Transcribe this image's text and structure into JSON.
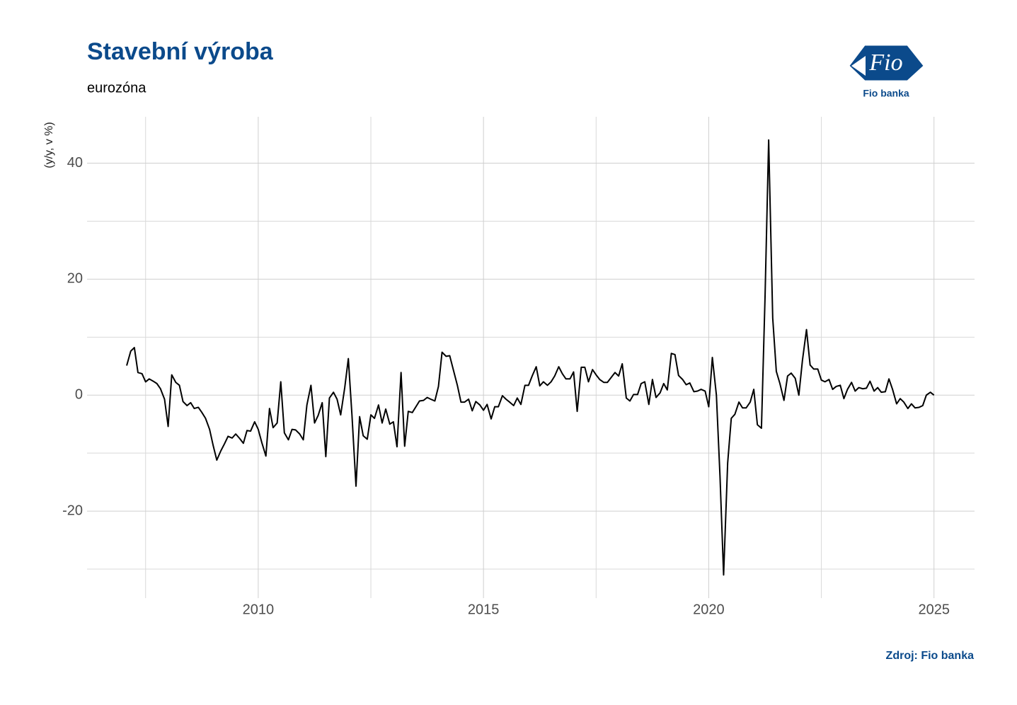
{
  "chart_data": {
    "type": "line",
    "title": "Stavební výroba",
    "subtitle": "eurozóna",
    "y_label": "(y/y, v %)",
    "source": "Zdroj: Fio banka",
    "logo": {
      "mark": "Fio",
      "caption": "Fio banka"
    },
    "xlim": [
      2006.2,
      2025.9
    ],
    "xticks": [
      2010,
      2015,
      2020,
      2025
    ],
    "xminorticks": [
      2007.5,
      2012.5,
      2017.5,
      2022.5
    ],
    "ylim": [
      -35,
      48
    ],
    "yticks": [
      -20,
      0,
      20,
      40
    ],
    "yminorticks": [
      -30,
      -10,
      10,
      30
    ],
    "grid": true,
    "x": [
      2007.08,
      2007.17,
      2007.25,
      2007.33,
      2007.42,
      2007.5,
      2007.58,
      2007.67,
      2007.75,
      2007.83,
      2007.92,
      2008,
      2008.08,
      2008.17,
      2008.25,
      2008.33,
      2008.42,
      2008.5,
      2008.58,
      2008.67,
      2008.75,
      2008.83,
      2008.92,
      2009,
      2009.08,
      2009.17,
      2009.25,
      2009.33,
      2009.42,
      2009.5,
      2009.58,
      2009.67,
      2009.75,
      2009.83,
      2009.92,
      2010,
      2010.08,
      2010.17,
      2010.25,
      2010.33,
      2010.42,
      2010.5,
      2010.58,
      2010.67,
      2010.75,
      2010.83,
      2010.92,
      2011,
      2011.08,
      2011.17,
      2011.25,
      2011.33,
      2011.42,
      2011.5,
      2011.58,
      2011.67,
      2011.75,
      2011.83,
      2011.92,
      2012,
      2012.08,
      2012.17,
      2012.25,
      2012.33,
      2012.42,
      2012.5,
      2012.58,
      2012.67,
      2012.75,
      2012.83,
      2012.92,
      2013,
      2013.08,
      2013.17,
      2013.25,
      2013.33,
      2013.42,
      2013.5,
      2013.58,
      2013.67,
      2013.75,
      2013.83,
      2013.92,
      2014,
      2014.08,
      2014.17,
      2014.25,
      2014.33,
      2014.42,
      2014.5,
      2014.58,
      2014.67,
      2014.75,
      2014.83,
      2014.92,
      2015,
      2015.08,
      2015.17,
      2015.25,
      2015.33,
      2015.42,
      2015.5,
      2015.58,
      2015.67,
      2015.75,
      2015.83,
      2015.92,
      2016,
      2016.08,
      2016.17,
      2016.25,
      2016.33,
      2016.42,
      2016.5,
      2016.58,
      2016.67,
      2016.75,
      2016.83,
      2016.92,
      2017,
      2017.08,
      2017.17,
      2017.25,
      2017.33,
      2017.42,
      2017.5,
      2017.58,
      2017.67,
      2017.75,
      2017.83,
      2017.92,
      2018,
      2018.08,
      2018.17,
      2018.25,
      2018.33,
      2018.42,
      2018.5,
      2018.58,
      2018.67,
      2018.75,
      2018.83,
      2018.92,
      2019,
      2019.08,
      2019.17,
      2019.25,
      2019.33,
      2019.42,
      2019.5,
      2019.58,
      2019.67,
      2019.75,
      2019.83,
      2019.92,
      2020,
      2020.08,
      2020.17,
      2020.25,
      2020.33,
      2020.42,
      2020.5,
      2020.58,
      2020.67,
      2020.75,
      2020.83,
      2020.92,
      2021,
      2021.08,
      2021.17,
      2021.25,
      2021.33,
      2021.42,
      2021.5,
      2021.58,
      2021.67,
      2021.75,
      2021.83,
      2021.92,
      2022,
      2022.08,
      2022.17,
      2022.25,
      2022.33,
      2022.42,
      2022.5,
      2022.58,
      2022.67,
      2022.75,
      2022.83,
      2022.92,
      2023,
      2023.08,
      2023.17,
      2023.25,
      2023.33,
      2023.42,
      2023.5,
      2023.58,
      2023.67,
      2023.75,
      2023.83,
      2023.92,
      2024,
      2024.08,
      2024.17,
      2024.25,
      2024.33,
      2024.42,
      2024.5,
      2024.58,
      2024.67,
      2024.75,
      2024.83,
      2024.92,
      2025
    ],
    "series": [
      {
        "color": "#000000",
        "values": [
          5.1,
          7.6,
          8.2,
          3.9,
          3.7,
          2.3,
          2.8,
          2.4,
          2.0,
          1.1,
          -0.7,
          -5.4,
          3.5,
          2.2,
          1.7,
          -1.1,
          -1.8,
          -1.3,
          -2.3,
          -2.1,
          -3.0,
          -4.0,
          -5.9,
          -8.7,
          -11.2,
          -9.6,
          -8.4,
          -7.1,
          -7.4,
          -6.7,
          -7.4,
          -8.3,
          -6.1,
          -6.2,
          -4.6,
          -5.9,
          -8.2,
          -10.5,
          -2.3,
          -5.6,
          -4.8,
          2.3,
          -6.5,
          -7.7,
          -5.9,
          -6.0,
          -6.7,
          -7.7,
          -1.7,
          1.7,
          -4.8,
          -3.5,
          -1.3,
          -10.6,
          -0.5,
          0.5,
          -0.7,
          -3.4,
          1.3,
          6.3,
          -3.4,
          -15.7,
          -3.7,
          -7.0,
          -7.6,
          -3.4,
          -4.0,
          -1.7,
          -4.8,
          -2.4,
          -5.0,
          -4.6,
          -8.9,
          3.9,
          -8.8,
          -2.8,
          -3.0,
          -2.0,
          -1.0,
          -0.9,
          -0.4,
          -0.7,
          -1.0,
          1.5,
          7.4,
          6.7,
          6.8,
          4.4,
          1.7,
          -1.2,
          -1.2,
          -0.7,
          -2.7,
          -1.1,
          -1.7,
          -2.6,
          -1.6,
          -4.1,
          -2.0,
          -2.0,
          -0.1,
          -0.7,
          -1.2,
          -1.8,
          -0.5,
          -1.6,
          1.7,
          1.7,
          3.3,
          4.9,
          1.6,
          2.3,
          1.7,
          2.3,
          3.3,
          4.9,
          3.7,
          2.8,
          2.8,
          4.0,
          -2.8,
          4.8,
          4.8,
          2.3,
          4.4,
          3.5,
          2.7,
          2.2,
          2.2,
          3.0,
          3.9,
          3.3,
          5.4,
          -0.5,
          -1.0,
          0.1,
          0.1,
          2.0,
          2.3,
          -1.6,
          2.7,
          -0.4,
          0.4,
          2.0,
          0.9,
          7.2,
          7.0,
          3.4,
          2.7,
          1.8,
          2.1,
          0.6,
          0.7,
          1.0,
          0.7,
          -2.0,
          6.5,
          0,
          -14.0,
          -31.0,
          -11.7,
          -4.0,
          -3.3,
          -1.2,
          -2.2,
          -2.2,
          -1.2,
          1.0,
          -5.1,
          -5.7,
          17.0,
          44.0,
          13.3,
          4.1,
          2.0,
          -0.9,
          3.3,
          3.8,
          2.9,
          0,
          6.0,
          11.3,
          5.2,
          4.5,
          4.5,
          2.6,
          2.3,
          2.7,
          1.0,
          1.5,
          1.7,
          -0.6,
          1.0,
          2.2,
          0.7,
          1.3,
          1.1,
          1.2,
          2.4,
          0.7,
          1.3,
          0.5,
          0.6,
          2.8,
          1.0,
          -1.5,
          -0.6,
          -1.2,
          -2.3,
          -1.5,
          -2.2,
          -2.1,
          -1.8,
          0,
          0.5,
          0
        ]
      }
    ]
  }
}
